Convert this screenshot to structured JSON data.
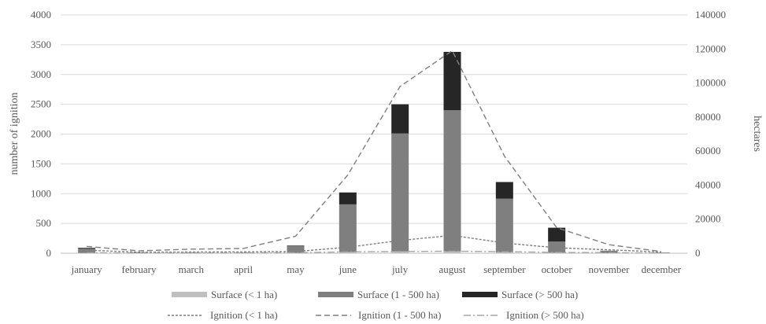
{
  "chart_data": {
    "type": "bar",
    "categories": [
      "january",
      "february",
      "march",
      "april",
      "may",
      "june",
      "july",
      "august",
      "september",
      "october",
      "november",
      "december"
    ],
    "ylabel": "number of ignition",
    "y2label": "hectares",
    "ylim": [
      0,
      4000
    ],
    "y2lim": [
      0,
      140000
    ],
    "yticks": [
      "0",
      "500",
      "1000",
      "1500",
      "2000",
      "2500",
      "3000",
      "3500",
      "4000"
    ],
    "y2ticks": [
      "0",
      "20000",
      "40000",
      "60000",
      "80000",
      "100000",
      "120000",
      "140000"
    ],
    "grid": true,
    "legend_position": "bottom",
    "bar_series": [
      {
        "name": "Surface  (< 1 ha)",
        "color": "#bfbfbf",
        "values": [
          5,
          2,
          2,
          2,
          5,
          20,
          30,
          30,
          15,
          8,
          3,
          2
        ]
      },
      {
        "name": "Surface  (1 - 500 ha)",
        "color": "#7f7f7f",
        "values": [
          70,
          15,
          10,
          10,
          120,
          800,
          1980,
          2370,
          900,
          190,
          40,
          10
        ]
      },
      {
        "name": "Surface (> 500 ha)",
        "color": "#262626",
        "values": [
          15,
          0,
          0,
          0,
          5,
          200,
          490,
          980,
          280,
          230,
          0,
          0
        ]
      }
    ],
    "line_series": [
      {
        "name": "Ignition (< 1 ha)",
        "color": "#7f7f7f",
        "dash": "3,2",
        "values": [
          1800,
          600,
          700,
          800,
          1000,
          3500,
          7500,
          10500,
          6000,
          3200,
          2000,
          700
        ]
      },
      {
        "name": "Ignition (1 - 500 ha)",
        "color": "#7f7f7f",
        "dash": "7,4",
        "values": [
          4000,
          1400,
          2400,
          2800,
          10000,
          46000,
          98000,
          119000,
          57000,
          15000,
          5000,
          1000
        ]
      },
      {
        "name": "Ignition (> 500 ha)",
        "color": "#a6a6a6",
        "dash": "9,3,2,3",
        "values": [
          300,
          100,
          100,
          200,
          300,
          800,
          1000,
          1200,
          900,
          500,
          300,
          100
        ]
      }
    ]
  }
}
